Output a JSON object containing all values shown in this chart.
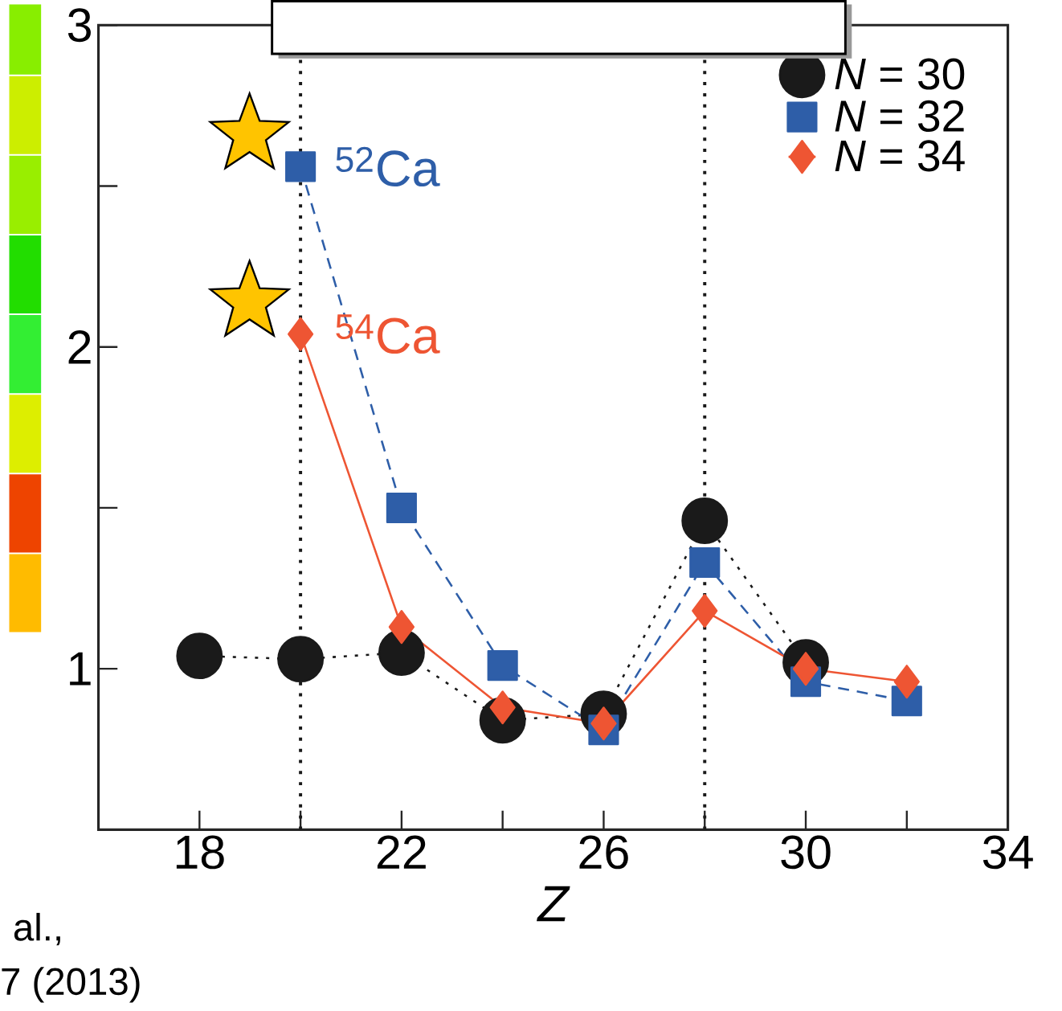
{
  "chart_data": {
    "type": "line",
    "xlabel": "Z",
    "x": [
      18,
      20,
      22,
      24,
      26,
      28,
      30,
      32
    ],
    "xlim": [
      16,
      34
    ],
    "xticks": [
      18,
      {
        "value": 20,
        "label": null
      },
      22,
      {
        "value": 24,
        "label": null
      },
      26,
      {
        "value": 28,
        "label": null
      },
      30,
      {
        "value": 32,
        "label": null
      },
      34
    ],
    "ylim": [
      0.5,
      3
    ],
    "yticks": [
      1,
      {
        "value": 1.5,
        "label": null
      },
      2,
      {
        "value": 2.5,
        "label": null
      },
      3
    ],
    "series": [
      {
        "name": "*N* = 30",
        "color": "#1a1a1a",
        "marker": "circle",
        "line_style": "dotted",
        "values": [
          1.04,
          1.03,
          1.05,
          0.84,
          0.86,
          1.46,
          1.02,
          null
        ]
      },
      {
        "name": "*N* = 32",
        "color": "#2e5ea8",
        "marker": "square",
        "line_style": "dashed",
        "values": [
          null,
          2.56,
          1.5,
          1.01,
          0.81,
          1.33,
          0.96,
          0.9
        ]
      },
      {
        "name": "*N* = 34",
        "color": "#ee5533",
        "marker": "diamond",
        "line_style": "solid",
        "values": [
          null,
          2.04,
          1.13,
          0.88,
          0.83,
          1.18,
          1.0,
          0.96
        ]
      }
    ],
    "ref_lines": [
      {
        "axis": "x",
        "value": 20,
        "color": "#1a1a1a",
        "line_style": "dotted"
      },
      {
        "axis": "x",
        "value": 28,
        "color": "#1a1a1a",
        "line_style": "dotted"
      }
    ],
    "annotations": [
      {
        "text": "$^{52}$Ca",
        "x": 20,
        "y": 2.56
      },
      {
        "text": "$^{54}$Ca",
        "x": 20,
        "y": 2.04
      },
      "al.,",
      "7 (2013)"
    ],
    "legend": "top right",
    "grid": false
  }
}
